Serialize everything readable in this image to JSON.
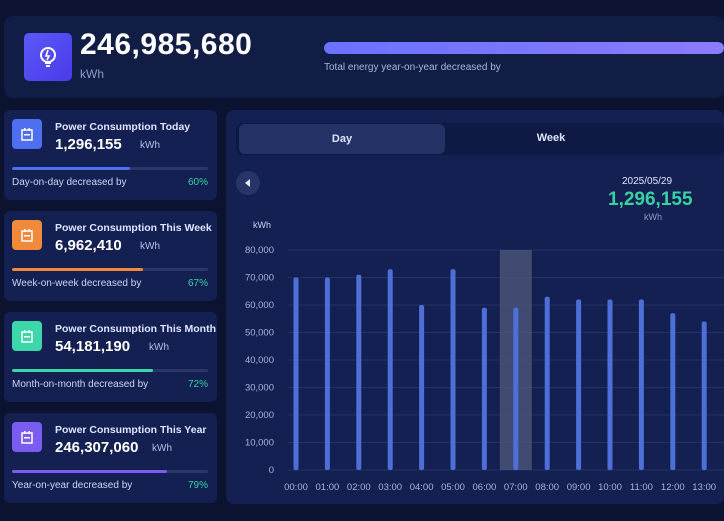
{
  "header": {
    "total_value": "246,985,680",
    "unit": "kWh",
    "bar_label": "Total energy year-on-year decreased by",
    "bar_fraction": 1.0,
    "icon": "lightbulb-icon"
  },
  "cards": [
    {
      "title": "Power Consumption Today",
      "value": "1,296,155",
      "unit": "kWh",
      "label": "Day-on-day decreased by",
      "percent": "60%",
      "fill_fraction": 0.6,
      "color": "#4d6ff0",
      "icon": "calendar-icon"
    },
    {
      "title": "Power Consumption This Week",
      "value": "6,962,410",
      "unit": "kWh",
      "label": "Week-on-week decreased by",
      "percent": "67%",
      "fill_fraction": 0.67,
      "color": "#f08a3a",
      "icon": "calendar-icon"
    },
    {
      "title": "Power Consumption This Month",
      "value": "54,181,190",
      "unit": "kWh",
      "label": "Month-on-month decreased by",
      "percent": "72%",
      "fill_fraction": 0.72,
      "color": "#3dd6a8",
      "icon": "calendar-icon"
    },
    {
      "title": "Power Consumption This Year",
      "value": "246,307,060",
      "unit": "kWh",
      "label": "Year-on-year decreased by",
      "percent": "79%",
      "fill_fraction": 0.79,
      "color": "#7a5cf0",
      "icon": "calendar-icon"
    }
  ],
  "tabs": {
    "day": "Day",
    "week": "Week",
    "active": "day"
  },
  "selection": {
    "date": "2025/05/29",
    "value": "1,296,155",
    "unit": "kWh"
  },
  "chart_data": {
    "type": "bar",
    "ylabel": "kWh",
    "ylim": [
      0,
      80000
    ],
    "yticks": [
      0,
      10000,
      20000,
      30000,
      40000,
      50000,
      60000,
      70000,
      80000
    ],
    "ytick_labels": [
      "0",
      "10,000",
      "20,000",
      "30,000",
      "40,000",
      "50,000",
      "60,000",
      "70,000",
      "80,000"
    ],
    "categories": [
      "00:00",
      "01:00",
      "02:00",
      "03:00",
      "04:00",
      "05:00",
      "06:00",
      "07:00",
      "08:00",
      "09:00",
      "10:00",
      "11:00",
      "12:00",
      "13:00"
    ],
    "values": [
      70000,
      70000,
      71000,
      73000,
      60000,
      73000,
      59000,
      59000,
      63000,
      62000,
      62000,
      62000,
      57000,
      54000
    ],
    "highlighted_category": "07:00",
    "bar_color": "#4f6fd8",
    "grid": true
  }
}
